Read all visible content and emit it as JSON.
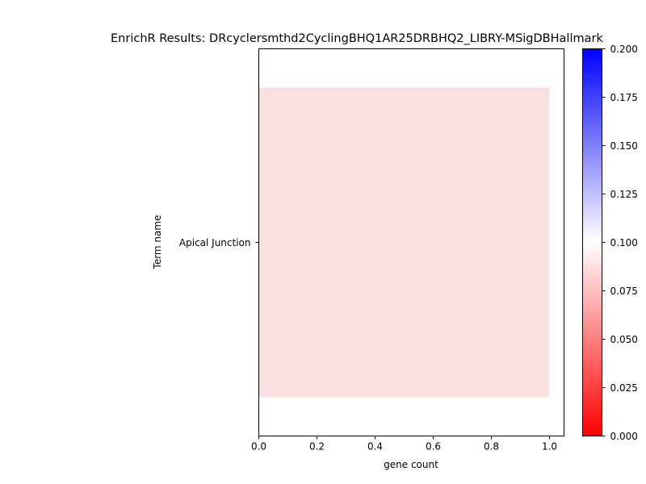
{
  "chart_data": {
    "type": "bar",
    "orientation": "horizontal",
    "title": "EnrichR Results: DRcyclersmthd2CyclingBHQ1AR25DRBHQ2_LIBRY-MSigDBHallmark",
    "xlabel": "gene count",
    "ylabel": "Term name",
    "categories": [
      "Apical Junction"
    ],
    "values": [
      1
    ],
    "bar_color_values": [
      0.091
    ],
    "xlim": [
      0,
      1.05
    ],
    "xticks": [
      "0.0",
      "0.2",
      "0.4",
      "0.6",
      "0.8",
      "1.0"
    ],
    "grid": false,
    "colorbar": {
      "colormap": "bwr_r",
      "range": [
        0.0,
        0.2
      ],
      "ticks": [
        "0.000",
        "0.025",
        "0.050",
        "0.075",
        "0.100",
        "0.125",
        "0.150",
        "0.175",
        "0.200"
      ],
      "low_color": "#ff0000",
      "mid_color": "#ffffff",
      "high_color": "#0000ff"
    },
    "bar_color": "#f9e0e0"
  }
}
